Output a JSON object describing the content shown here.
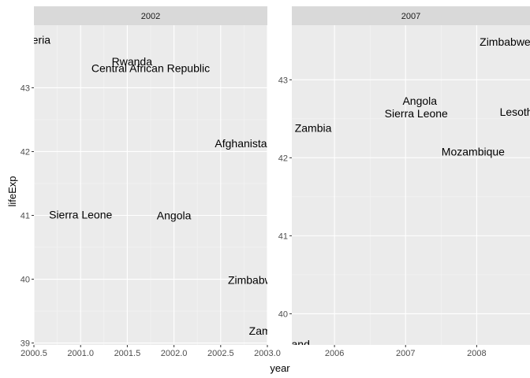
{
  "chart_data": {
    "type": "scatter",
    "geom": "text",
    "xlabel": "year",
    "ylabel": "lifeExp",
    "facets": [
      {
        "strip": "2002",
        "xlim": [
          2000.5,
          2003.0
        ],
        "ylim": [
          38.97,
          43.98
        ],
        "x_ticks": [
          2000.5,
          2001.0,
          2001.5,
          2002.0,
          2002.5,
          2003.0
        ],
        "x_tick_labels": [
          "2000.5",
          "2001.0",
          "2001.5",
          "2002.0",
          "2002.5",
          "2003.0"
        ],
        "y_ticks": [
          39,
          40,
          41,
          42,
          43
        ],
        "y_tick_labels": [
          "39",
          "40",
          "41",
          "42",
          "43"
        ],
        "points": [
          {
            "label": "Liberia",
            "x": 2000.5,
            "y": 43.75
          },
          {
            "label": "Rwanda",
            "x": 2001.55,
            "y": 43.41
          },
          {
            "label": "Central African Republic",
            "x": 2001.75,
            "y": 43.31
          },
          {
            "label": "Afghanistan",
            "x": 2002.75,
            "y": 42.13
          },
          {
            "label": "Sierra Leone",
            "x": 2001.0,
            "y": 41.01
          },
          {
            "label": "Angola",
            "x": 2002.0,
            "y": 41.0
          },
          {
            "label": "Zimbabwe",
            "x": 2002.85,
            "y": 39.99
          },
          {
            "label": "Zambia",
            "x": 2003.0,
            "y": 39.19
          }
        ]
      },
      {
        "strip": "2007",
        "xlim": [
          2005.4,
          2008.75
        ],
        "ylim": [
          39.6,
          43.7
        ],
        "x_ticks": [
          2006,
          2007,
          2008
        ],
        "x_tick_labels": [
          "2006",
          "2007",
          "2008"
        ],
        "y_ticks": [
          40,
          41,
          42,
          43
        ],
        "y_tick_labels": [
          "40",
          "41",
          "42",
          "43"
        ],
        "points": [
          {
            "label": "Zimbabwe",
            "x": 2008.4,
            "y": 43.49
          },
          {
            "label": "Angola",
            "x": 2007.2,
            "y": 42.73
          },
          {
            "label": "Sierra Leone",
            "x": 2007.15,
            "y": 42.57
          },
          {
            "label": "Lesotho",
            "x": 2008.6,
            "y": 42.59
          },
          {
            "label": "Zambia",
            "x": 2005.7,
            "y": 42.38
          },
          {
            "label": "Mozambique",
            "x": 2007.95,
            "y": 42.08
          },
          {
            "label": "Swaziland",
            "x": 2005.3,
            "y": 39.61
          }
        ]
      }
    ]
  }
}
